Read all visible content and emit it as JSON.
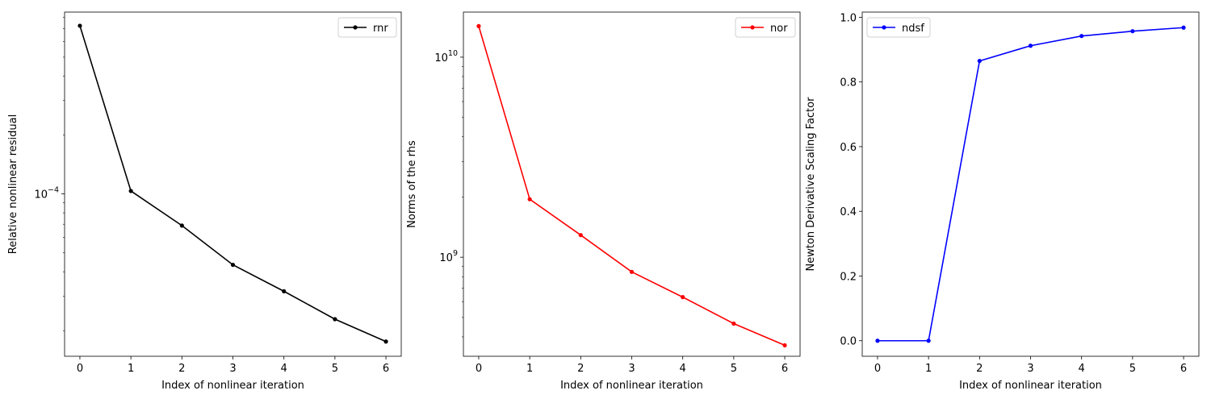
{
  "chart_data": [
    {
      "type": "line",
      "x": [
        0,
        1,
        2,
        3,
        4,
        5,
        6
      ],
      "series": [
        {
          "name": "rnr",
          "color": "#000000",
          "marker": "dot",
          "values": [
            0.000724,
            0.0001035,
            6.89e-05,
            4.34e-05,
            3.18e-05,
            2.29e-05,
            1.76e-05
          ]
        }
      ],
      "xlabel": "Index of nonlinear iteration",
      "ylabel": "Relative nonlinear residual",
      "yscale": "log",
      "xlim": [
        -0.3,
        6.3
      ],
      "ylim": [
        1.48e-05,
        0.00085
      ],
      "xticks": [
        0,
        1,
        2,
        3,
        4,
        5,
        6
      ],
      "yticks": [
        {
          "value": 0.0001,
          "base": "10",
          "exp": "−4"
        }
      ],
      "legend": "upper right",
      "grid": false
    },
    {
      "type": "line",
      "x": [
        0,
        1,
        2,
        3,
        4,
        5,
        6
      ],
      "series": [
        {
          "name": "nor",
          "color": "#ff0000",
          "marker": "dot",
          "values": 14300000000
        }
      ],
      "xlabel": "Index of nonlinear iteration",
      "ylabel": "Norms of the rhs",
      "yscale": "log",
      "xlim": [
        -0.3,
        6.3
      ],
      "ylim": [
        320000000,
        16800000000
      ],
      "xticks": [
        0,
        1,
        2,
        3,
        4,
        5,
        6
      ],
      "yticks": [
        {
          "value": 10000000000,
          "base": "10",
          "exp": "10"
        },
        {
          "value": 1000000000,
          "base": "10",
          "exp": "9"
        }
      ],
      "legend": "upper right",
      "grid": false
    },
    {
      "type": "line",
      "x": [
        0,
        1,
        2,
        3,
        4,
        5,
        6
      ],
      "series": [
        {
          "name": "ndsf",
          "color": "#0000ff",
          "marker": "dot",
          "values": [
            0.0,
            0.0,
            0.865,
            0.912,
            0.942,
            0.957,
            0.968
          ]
        }
      ],
      "xlabel": "Index of nonlinear iteration",
      "ylabel": "Newton Derivative Scaling Factor",
      "yscale": "linear",
      "xlim": [
        -0.3,
        6.3
      ],
      "ylim": [
        -0.048,
        1.016
      ],
      "xticks": [
        0,
        1,
        2,
        3,
        4,
        5,
        6
      ],
      "yticks": [
        {
          "value": 0.0,
          "label": "0.0"
        },
        {
          "value": 0.2,
          "label": "0.2"
        },
        {
          "value": 0.4,
          "label": "0.4"
        },
        {
          "value": 0.6,
          "label": "0.6"
        },
        {
          "value": 0.8,
          "label": "0.8"
        },
        {
          "value": 1.0,
          "label": "1.0"
        }
      ],
      "legend": "upper left",
      "grid": false
    }
  ]
}
